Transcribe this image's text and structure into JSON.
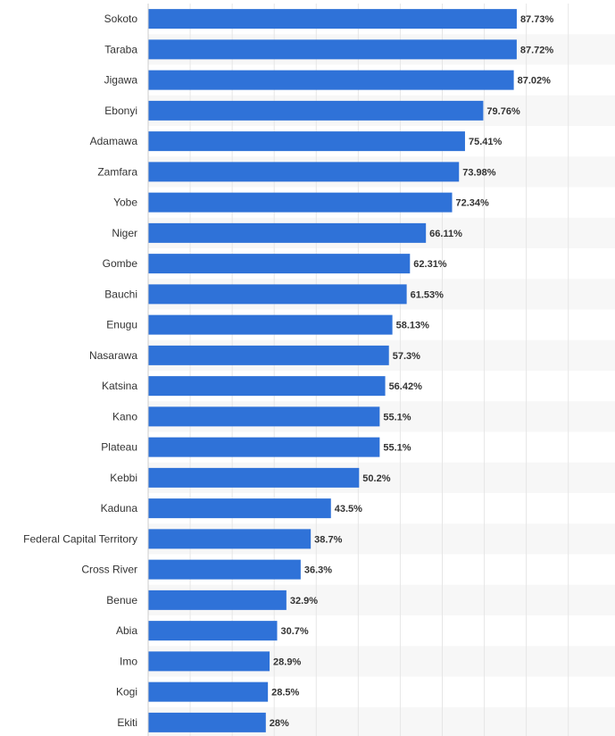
{
  "chart_data": {
    "type": "bar",
    "orientation": "horizontal",
    "title": "",
    "xlabel": "",
    "ylabel": "",
    "xlim": [
      0,
      100
    ],
    "grid": true,
    "bar_color": "#2f72d8",
    "value_suffix": "%",
    "categories": [
      "Sokoto",
      "Taraba",
      "Jigawa",
      "Ebonyi",
      "Adamawa",
      "Zamfara",
      "Yobe",
      "Niger",
      "Gombe",
      "Bauchi",
      "Enugu",
      "Nasarawa",
      "Katsina",
      "Kano",
      "Plateau",
      "Kebbi",
      "Kaduna",
      "Federal Capital Territory",
      "Cross River",
      "Benue",
      "Abia",
      "Imo",
      "Kogi",
      "Ekiti"
    ],
    "values": [
      87.73,
      87.72,
      87.02,
      79.76,
      75.41,
      73.98,
      72.34,
      66.11,
      62.31,
      61.53,
      58.13,
      57.3,
      56.42,
      55.1,
      55.1,
      50.2,
      43.5,
      38.7,
      36.3,
      32.9,
      30.7,
      28.9,
      28.5,
      28
    ],
    "value_labels": [
      "87.73%",
      "87.72%",
      "87.02%",
      "79.76%",
      "75.41%",
      "73.98%",
      "72.34%",
      "66.11%",
      "62.31%",
      "61.53%",
      "58.13%",
      "57.3%",
      "56.42%",
      "55.1%",
      "55.1%",
      "50.2%",
      "43.5%",
      "38.7%",
      "36.3%",
      "32.9%",
      "30.7%",
      "28.9%",
      "28.5%",
      "28%"
    ]
  }
}
